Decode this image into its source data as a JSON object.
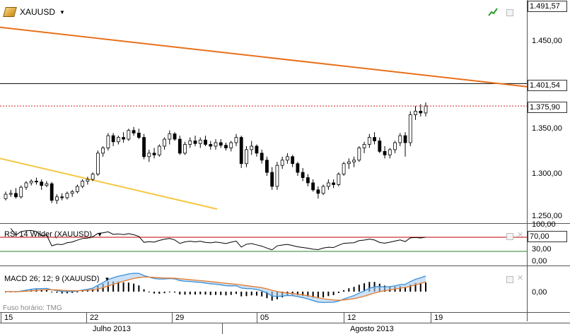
{
  "symbol": {
    "name": "XAUUSD",
    "menu_arrow": "▼",
    "icon": "gold-bar-icon"
  },
  "price_axis": {
    "labels": [
      "1.491,57",
      "1.450,00",
      "1.401,54",
      "1.375,90",
      "1.350,00",
      "1.300,00",
      "1.250,00"
    ]
  },
  "rsi": {
    "label": "RSI 14 Wilder (XAUUSD)",
    "menu_arrow": "▼",
    "axis": [
      "100,00",
      "70,00",
      "30,00",
      "0,00"
    ]
  },
  "macd": {
    "label": "MACD 26; 12; 9 (XAUUSD)",
    "menu_arrow": "▼",
    "axis": [
      "0,00"
    ]
  },
  "timezone": "Fuso horário: TMG",
  "dates": [
    "15",
    "22",
    "29",
    "05",
    "12",
    "19"
  ],
  "months": [
    "Julho 2013",
    "Agosto 2013"
  ],
  "colors": {
    "trend_orange": "#e8701a",
    "trend_yellow": "#f5c842",
    "rsi_line": "#000000",
    "rsi_upper": "#c00000",
    "rsi_lower": "#2e7d32",
    "macd_blue": "#3a8fd6",
    "macd_orange": "#e87a2a",
    "macd_fill": "#a8cdf0",
    "dotted_price": "#d02020",
    "bull": "#ffffff",
    "bear": "#000000"
  },
  "chart_data": {
    "type": "candlestick",
    "title": "XAUUSD",
    "y_range": [
      1250,
      1491.57
    ],
    "candles": [
      [
        1270,
        1278,
        1268,
        1275
      ],
      [
        1275,
        1280,
        1272,
        1276
      ],
      [
        1276,
        1282,
        1270,
        1272
      ],
      [
        1272,
        1285,
        1270,
        1283
      ],
      [
        1283,
        1290,
        1280,
        1288
      ],
      [
        1288,
        1292,
        1285,
        1290
      ],
      [
        1290,
        1294,
        1286,
        1289
      ],
      [
        1289,
        1292,
        1280,
        1285
      ],
      [
        1285,
        1290,
        1283,
        1287
      ],
      [
        1287,
        1289,
        1265,
        1268
      ],
      [
        1268,
        1275,
        1264,
        1272
      ],
      [
        1272,
        1276,
        1268,
        1271
      ],
      [
        1271,
        1278,
        1269,
        1276
      ],
      [
        1276,
        1280,
        1272,
        1278
      ],
      [
        1278,
        1286,
        1276,
        1284
      ],
      [
        1284,
        1292,
        1282,
        1290
      ],
      [
        1290,
        1295,
        1286,
        1292
      ],
      [
        1292,
        1300,
        1290,
        1298
      ],
      [
        1298,
        1325,
        1296,
        1322
      ],
      [
        1322,
        1330,
        1318,
        1328
      ],
      [
        1328,
        1345,
        1325,
        1342
      ],
      [
        1342,
        1345,
        1330,
        1335
      ],
      [
        1335,
        1342,
        1332,
        1340
      ],
      [
        1340,
        1346,
        1334,
        1338
      ],
      [
        1338,
        1350,
        1336,
        1348
      ],
      [
        1348,
        1352,
        1342,
        1345
      ],
      [
        1345,
        1350,
        1338,
        1340
      ],
      [
        1340,
        1344,
        1315,
        1318
      ],
      [
        1318,
        1326,
        1312,
        1322
      ],
      [
        1322,
        1328,
        1316,
        1320
      ],
      [
        1320,
        1332,
        1318,
        1330
      ],
      [
        1330,
        1340,
        1326,
        1338
      ],
      [
        1338,
        1348,
        1332,
        1344
      ],
      [
        1344,
        1346,
        1336,
        1338
      ],
      [
        1338,
        1342,
        1320,
        1322
      ],
      [
        1322,
        1335,
        1320,
        1332
      ],
      [
        1332,
        1340,
        1328,
        1336
      ],
      [
        1336,
        1342,
        1330,
        1333
      ],
      [
        1333,
        1340,
        1328,
        1337
      ],
      [
        1337,
        1342,
        1330,
        1332
      ],
      [
        1332,
        1336,
        1326,
        1330
      ],
      [
        1330,
        1338,
        1326,
        1334
      ],
      [
        1334,
        1338,
        1328,
        1331
      ],
      [
        1331,
        1334,
        1325,
        1328
      ],
      [
        1328,
        1336,
        1324,
        1334
      ],
      [
        1334,
        1344,
        1330,
        1340
      ],
      [
        1340,
        1342,
        1305,
        1310
      ],
      [
        1310,
        1330,
        1306,
        1326
      ],
      [
        1326,
        1336,
        1320,
        1330
      ],
      [
        1330,
        1332,
        1318,
        1322
      ],
      [
        1322,
        1326,
        1310,
        1314
      ],
      [
        1314,
        1318,
        1296,
        1300
      ],
      [
        1300,
        1306,
        1280,
        1284
      ],
      [
        1284,
        1312,
        1280,
        1308
      ],
      [
        1308,
        1318,
        1304,
        1314
      ],
      [
        1314,
        1322,
        1310,
        1318
      ],
      [
        1318,
        1320,
        1306,
        1310
      ],
      [
        1310,
        1312,
        1296,
        1300
      ],
      [
        1300,
        1305,
        1290,
        1294
      ],
      [
        1294,
        1298,
        1284,
        1288
      ],
      [
        1288,
        1292,
        1278,
        1280
      ],
      [
        1280,
        1284,
        1270,
        1276
      ],
      [
        1276,
        1286,
        1274,
        1284
      ],
      [
        1284,
        1292,
        1280,
        1288
      ],
      [
        1288,
        1292,
        1282,
        1286
      ],
      [
        1286,
        1300,
        1284,
        1298
      ],
      [
        1298,
        1312,
        1296,
        1310
      ],
      [
        1310,
        1316,
        1304,
        1312
      ],
      [
        1312,
        1318,
        1306,
        1314
      ],
      [
        1314,
        1330,
        1312,
        1328
      ],
      [
        1328,
        1335,
        1322,
        1332
      ],
      [
        1332,
        1344,
        1328,
        1340
      ],
      [
        1340,
        1346,
        1332,
        1336
      ],
      [
        1336,
        1340,
        1322,
        1324
      ],
      [
        1324,
        1330,
        1316,
        1320
      ],
      [
        1320,
        1328,
        1316,
        1326
      ],
      [
        1326,
        1336,
        1322,
        1334
      ],
      [
        1334,
        1345,
        1330,
        1342
      ],
      [
        1342,
        1346,
        1318,
        1334
      ],
      [
        1334,
        1370,
        1330,
        1366
      ],
      [
        1366,
        1376,
        1360,
        1370
      ],
      [
        1370,
        1378,
        1364,
        1368
      ],
      [
        1368,
        1380,
        1364,
        1376
      ]
    ],
    "trendlines": [
      {
        "name": "orange",
        "from": [
          0,
          1466
        ],
        "to": [
          1,
          1398
        ]
      },
      {
        "name": "yellow",
        "from": [
          0,
          1316
        ],
        "to": [
          1,
          1258
        ]
      }
    ],
    "levels": [
      1401.54,
      1375.9
    ]
  }
}
